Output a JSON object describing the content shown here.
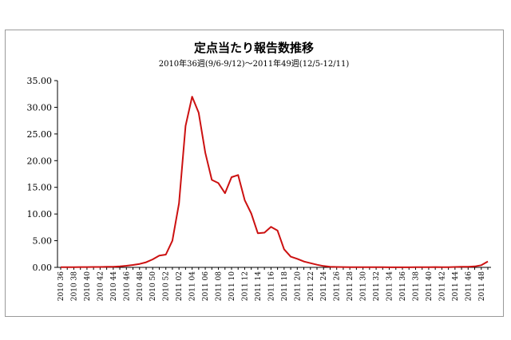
{
  "chart_data": {
    "type": "line",
    "title": "定点当たり報告数推移",
    "subtitle": "2010年36週(9/6-9/12)～2011年49週(12/5-12/11)",
    "xlabel": "",
    "ylabel": "",
    "ylim": [
      0,
      35
    ],
    "yticks": [
      "0.00",
      "5.00",
      "10.00",
      "15.00",
      "20.00",
      "25.00",
      "30.00",
      "35.00"
    ],
    "grid": false,
    "line_color": "#cc1111",
    "x": [
      "2010 36",
      "2010 37",
      "2010 38",
      "2010 39",
      "2010 40",
      "2010 41",
      "2010 42",
      "2010 43",
      "2010 44",
      "2010 45",
      "2010 46",
      "2010 47",
      "2010 48",
      "2010 49",
      "2010 50",
      "2010 51",
      "2010 52",
      "2011 01",
      "2011 02",
      "2011 03",
      "2011 04",
      "2011 05",
      "2011 06",
      "2011 07",
      "2011 08",
      "2011 09",
      "2011 10",
      "2011 11",
      "2011 12",
      "2011 13",
      "2011 14",
      "2011 15",
      "2011 16",
      "2011 17",
      "2011 18",
      "2011 19",
      "2011 20",
      "2011 21",
      "2011 22",
      "2011 23",
      "2011 24",
      "2011 25",
      "2011 26",
      "2011 27",
      "2011 28",
      "2011 29",
      "2011 30",
      "2011 31",
      "2011 32",
      "2011 33",
      "2011 34",
      "2011 35",
      "2011 36",
      "2011 37",
      "2011 38",
      "2011 39",
      "2011 40",
      "2011 41",
      "2011 42",
      "2011 43",
      "2011 44",
      "2011 45",
      "2011 46",
      "2011 47",
      "2011 48",
      "2011 49"
    ],
    "xtick_labels": [
      "2010 36",
      "2010 38",
      "2010 40",
      "2010 42",
      "2010 44",
      "2010 46",
      "2010 48",
      "2010 50",
      "2010 52",
      "2011 02",
      "2011 04",
      "2011 06",
      "2011 08",
      "2011 10",
      "2011 12",
      "2011 14",
      "2011 16",
      "2011 18",
      "2011 20",
      "2011 22",
      "2011 24",
      "2011 26",
      "2011 28",
      "2011 30",
      "2011 32",
      "2011 34",
      "2011 36",
      "2011 38",
      "2011 40",
      "2011 42",
      "2011 44",
      "2011 46",
      "2011 48"
    ],
    "values": [
      0.05,
      0.05,
      0.05,
      0.06,
      0.06,
      0.07,
      0.08,
      0.1,
      0.12,
      0.18,
      0.3,
      0.45,
      0.65,
      0.95,
      1.5,
      2.2,
      2.4,
      5.0,
      12.0,
      26.5,
      32.0,
      29.0,
      21.5,
      16.4,
      15.8,
      13.9,
      16.9,
      17.3,
      12.6,
      10.1,
      6.4,
      6.5,
      7.6,
      6.9,
      3.4,
      2.0,
      1.6,
      1.1,
      0.8,
      0.5,
      0.25,
      0.1,
      0.08,
      0.06,
      0.05,
      0.05,
      0.05,
      0.04,
      0.04,
      0.03,
      0.02,
      0.02,
      0.02,
      0.02,
      0.03,
      0.04,
      0.05,
      0.06,
      0.05,
      0.05,
      0.08,
      0.1,
      0.12,
      0.18,
      0.4,
      1.1
    ]
  }
}
